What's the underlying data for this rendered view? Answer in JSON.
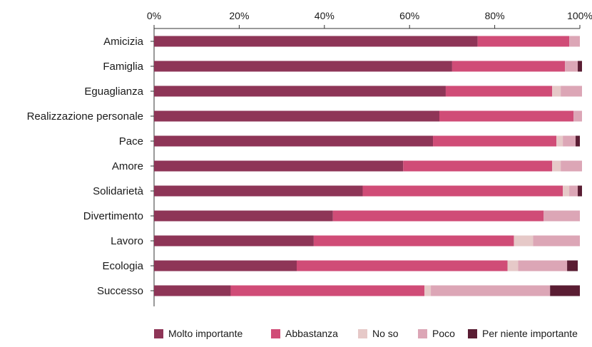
{
  "chart_data": {
    "type": "bar",
    "orientation": "horizontal",
    "stacked": true,
    "percent": true,
    "title": "",
    "xlabel": "",
    "ylabel": "",
    "xlim": [
      0,
      100
    ],
    "x_ticks": [
      "0%",
      "20%",
      "40%",
      "60%",
      "80%",
      "100%"
    ],
    "grid": false,
    "legend_position": "bottom",
    "categories": [
      "Amicizia",
      "Famiglia",
      "Eguaglianza",
      "Realizzazione personale",
      "Pace",
      "Amore",
      "Solidarietà",
      "Divertimento",
      "Lavoro",
      "Ecologia",
      "Successo"
    ],
    "series": [
      {
        "name": "Molto importante",
        "color": "#8e3557",
        "values": [
          76,
          70,
          68.5,
          67,
          65.5,
          58.5,
          49,
          42,
          37.5,
          33.5,
          18
        ]
      },
      {
        "name": "Abbastanza",
        "color": "#d04c77",
        "values": [
          21.5,
          26.5,
          25,
          31.5,
          29,
          35,
          47,
          49.5,
          47,
          49.5,
          45.5
        ]
      },
      {
        "name": "No so",
        "color": "#e6c9c8",
        "values": [
          0,
          0,
          2,
          0,
          1.5,
          2,
          1.5,
          0,
          4.5,
          2.5,
          1.5
        ]
      },
      {
        "name": "Poco",
        "color": "#dca6b6",
        "values": [
          2.5,
          3,
          5,
          2,
          3,
          5,
          2,
          8.5,
          11,
          11.5,
          28
        ]
      },
      {
        "name": "Per niente importante",
        "color": "#5a1d33",
        "values": [
          0,
          1,
          0,
          0,
          1,
          0,
          1,
          0,
          0,
          2.5,
          7
        ]
      }
    ]
  }
}
